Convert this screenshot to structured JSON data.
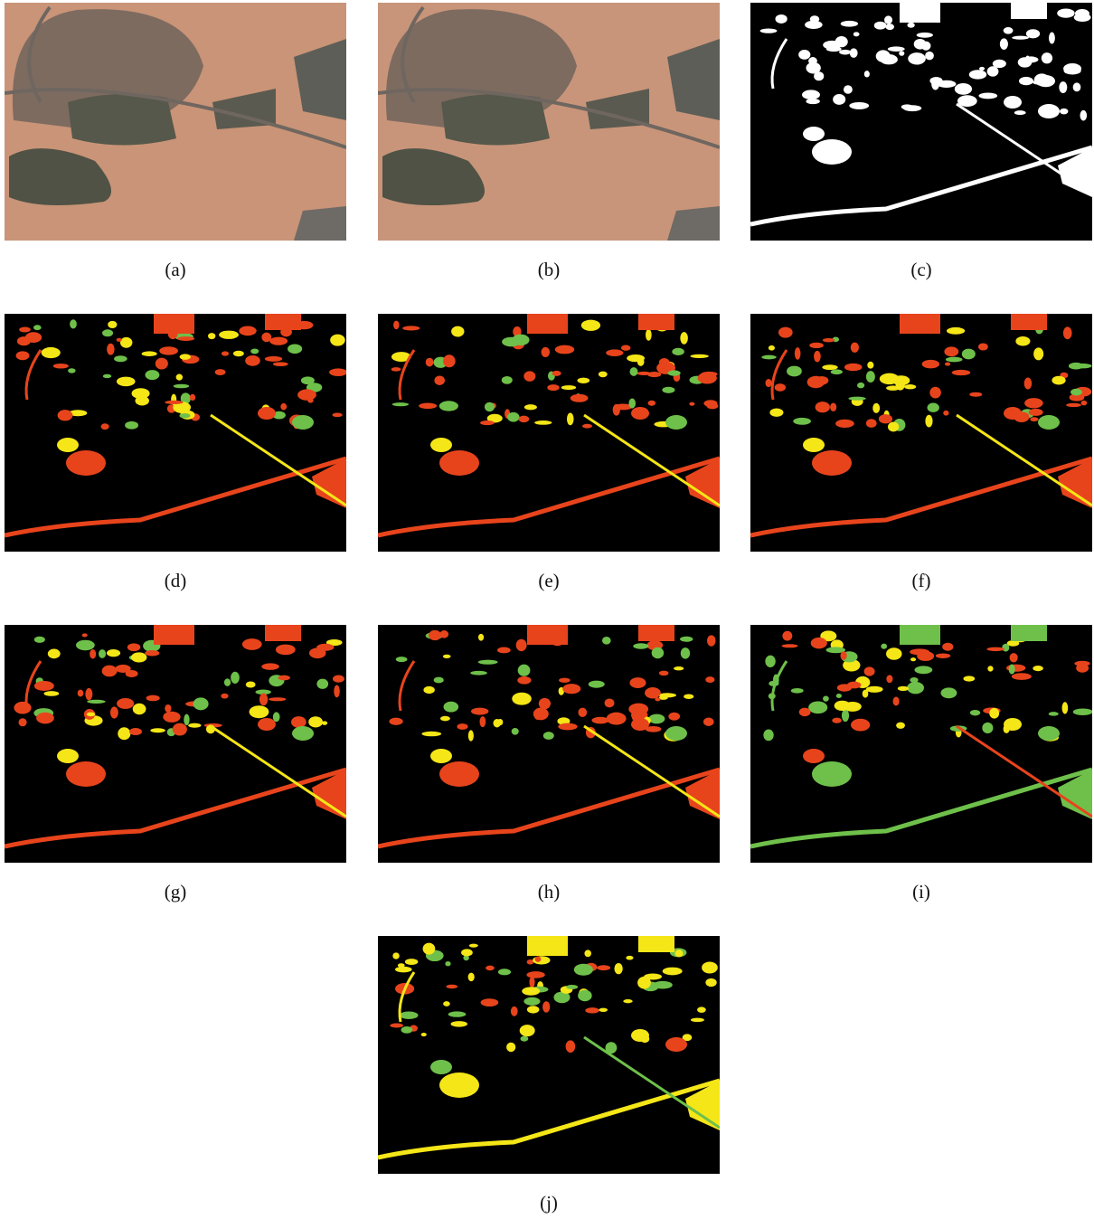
{
  "panels": [
    {
      "caption": "(a)"
    },
    {
      "caption": "(b)"
    },
    {
      "caption": "(c)"
    },
    {
      "caption": "(d)"
    },
    {
      "caption": "(e)"
    },
    {
      "caption": "(f)"
    },
    {
      "caption": "(g)"
    },
    {
      "caption": "(h)"
    },
    {
      "caption": "(i)"
    },
    {
      "caption": "(j)"
    }
  ]
}
